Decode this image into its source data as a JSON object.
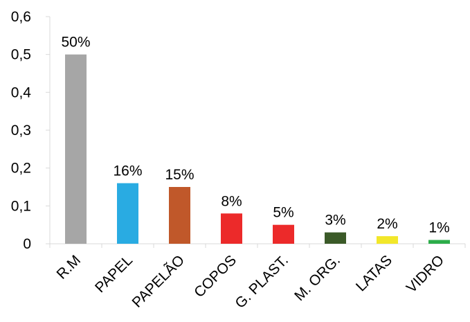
{
  "chart_data": {
    "type": "bar",
    "title": "",
    "xlabel": "",
    "ylabel": "",
    "categories": [
      "R.M",
      "PAPEL",
      "PAPELÃO",
      "COPOS",
      "G. PLAST.",
      "M. ORG.",
      "LATAS",
      "VIDRO"
    ],
    "values": [
      0.5,
      0.16,
      0.15,
      0.08,
      0.05,
      0.03,
      0.02,
      0.01
    ],
    "data_labels": [
      "50%",
      "16%",
      "15%",
      "8%",
      "5%",
      "3%",
      "2%",
      "1%"
    ],
    "bar_colors": [
      "#a6a6a6",
      "#29abe2",
      "#c0582a",
      "#ec2a2a",
      "#ec2a2a",
      "#3b5a28",
      "#f2e72a",
      "#2cad4a"
    ],
    "yticks": [
      "0",
      "0,1",
      "0,2",
      "0,3",
      "0,4",
      "0,5",
      "0,6"
    ],
    "ylim": [
      0,
      0.6
    ],
    "grid": false,
    "legend": "none"
  }
}
